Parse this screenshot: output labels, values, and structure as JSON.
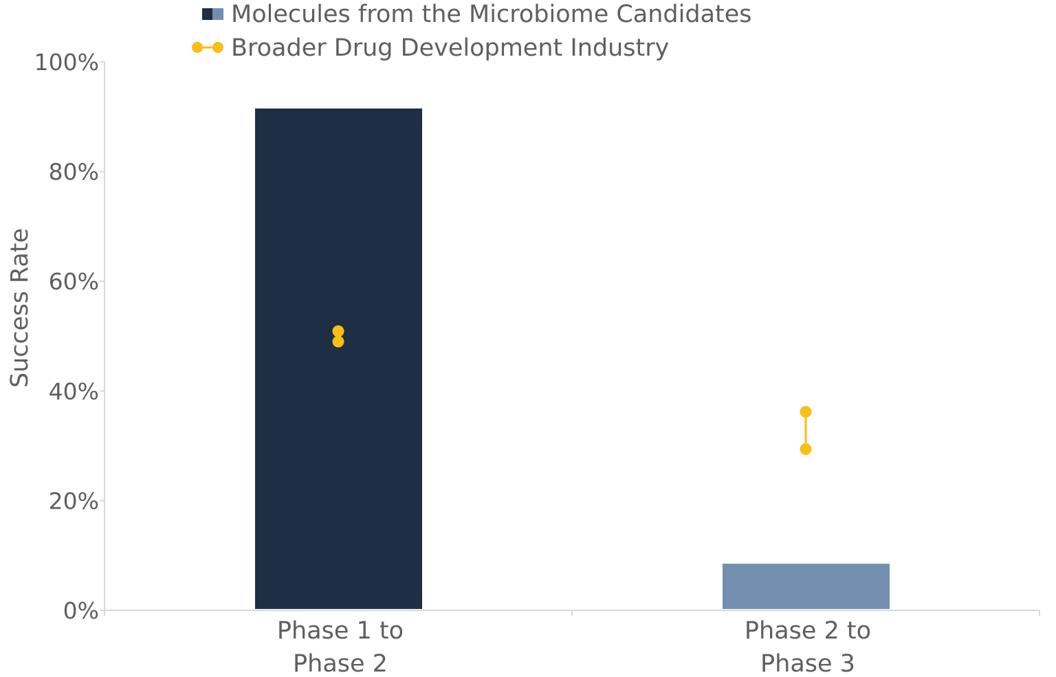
{
  "chart_data": {
    "type": "bar",
    "categories": [
      [
        "Phase 1 to",
        "Phase 2"
      ],
      [
        "Phase 2 to",
        "Phase 3"
      ]
    ],
    "ylabel": "Success Rate",
    "ylim": [
      0,
      100
    ],
    "yticks": [
      "0%",
      "20%",
      "40%",
      "60%",
      "80%",
      "100%"
    ],
    "ytick_values": [
      0,
      20,
      40,
      60,
      80,
      100
    ],
    "grid": false,
    "legend_position": "top",
    "series": [
      {
        "name": "Molecules from the Microbiome Candidates",
        "type": "bar",
        "values": [
          91.5,
          8.5
        ],
        "colors": [
          "#1e2e44",
          "#738faf"
        ]
      },
      {
        "name": "Broader Drug Development Industry",
        "type": "range",
        "low": [
          49.0,
          29.4
        ],
        "high": [
          50.9,
          36.2
        ],
        "color": "#fbbd16"
      }
    ]
  }
}
